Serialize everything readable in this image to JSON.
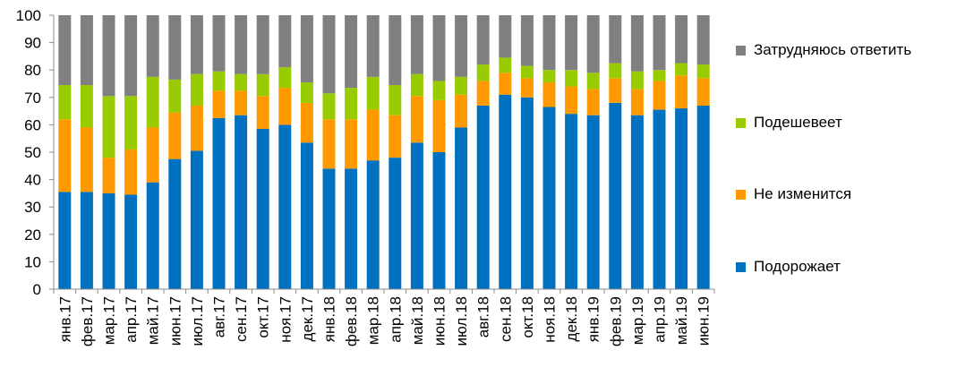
{
  "chart_data": {
    "type": "bar",
    "stacked": true,
    "ylim": [
      0,
      100
    ],
    "ytick_step": 10,
    "grid": false,
    "legend_position": "right",
    "categories": [
      "янв.17",
      "фев.17",
      "мар.17",
      "апр.17",
      "май.17",
      "июн.17",
      "июл.17",
      "авг.17",
      "сен.17",
      "окт.17",
      "ноя.17",
      "дек.17",
      "янв.18",
      "фев.18",
      "мар.18",
      "апр.18",
      "май.18",
      "июн.18",
      "июл.18",
      "авг.18",
      "сен.18",
      "окт.18",
      "ноя.18",
      "дек.18",
      "янв.19",
      "фев.19",
      "мар.19",
      "апр.19",
      "май.19",
      "июн.19"
    ],
    "series": [
      {
        "name": "Подорожает",
        "color": "#0070C0",
        "values": [
          35.5,
          35.5,
          35,
          34.5,
          39,
          47.5,
          50.5,
          62.5,
          63.5,
          58.5,
          60,
          53.5,
          44,
          44,
          47,
          48,
          53.5,
          50,
          59,
          67,
          71,
          70,
          66.5,
          64,
          63.5,
          68,
          63.5,
          65.5,
          66,
          67
        ]
      },
      {
        "name": "Не изменится",
        "color": "#FF9900",
        "values": [
          26.5,
          23.5,
          13,
          16.5,
          20,
          17,
          16.5,
          10,
          9,
          12,
          13.5,
          14.5,
          18,
          18,
          18.5,
          15.5,
          17,
          19,
          12,
          9,
          8,
          7,
          9,
          10,
          9.5,
          9,
          9.5,
          10.5,
          12,
          10
        ]
      },
      {
        "name": "Подешевеет",
        "color": "#99CC00",
        "values": [
          12.5,
          15.5,
          22.5,
          19.5,
          18.5,
          12,
          11.5,
          7,
          6,
          8,
          7.5,
          7.5,
          9.5,
          11.5,
          12,
          11,
          8,
          7,
          6.5,
          6,
          5.5,
          4.5,
          4.5,
          6,
          6,
          5.5,
          6.5,
          4,
          4.5,
          5
        ]
      },
      {
        "name": "Затрудняюсь ответить",
        "color": "#808080",
        "values": [
          25.5,
          25.5,
          29.5,
          29.5,
          22.5,
          23.5,
          21.5,
          20.5,
          21.5,
          21.5,
          19,
          24.5,
          28.5,
          26.5,
          22.5,
          25.5,
          21.5,
          24,
          22.5,
          18,
          15.5,
          18.5,
          20,
          20,
          21,
          17.5,
          20.5,
          20,
          17.5,
          18
        ]
      }
    ],
    "yticks": [
      "0",
      "10",
      "20",
      "30",
      "40",
      "50",
      "60",
      "70",
      "80",
      "90",
      "100"
    ]
  }
}
